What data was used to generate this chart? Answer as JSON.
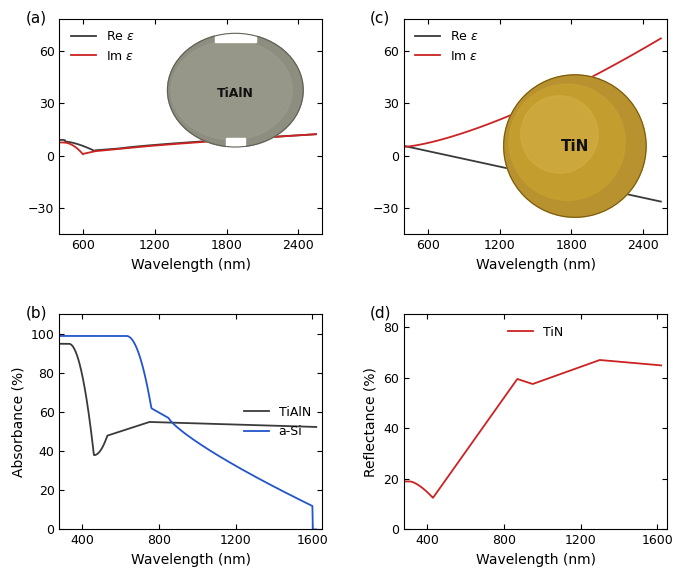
{
  "fig_width": 6.85,
  "fig_height": 5.78,
  "panel_labels": [
    "(a)",
    "(b)",
    "(c)",
    "(d)"
  ],
  "panel_label_fontsize": 11,
  "ax_a": {
    "xlabel": "Wavelength (nm)",
    "ylabel": "",
    "xlim": [
      400,
      2600
    ],
    "ylim": [
      -45,
      78
    ],
    "yticks": [
      -30,
      0,
      30,
      60
    ],
    "xticks": [
      600,
      1200,
      1800,
      2400
    ],
    "legend_colors": [
      "#3a3a3a",
      "#cc2222"
    ]
  },
  "ax_b": {
    "xlabel": "Wavelength (nm)",
    "ylabel": "Absorbance (%)",
    "xlim": [
      280,
      1650
    ],
    "ylim": [
      0,
      110
    ],
    "yticks": [
      0,
      20,
      40,
      60,
      80,
      100
    ],
    "xticks": [
      400,
      800,
      1200,
      1600
    ],
    "legend_colors": [
      "#3a3a3a",
      "#2255cc"
    ]
  },
  "ax_c": {
    "xlabel": "Wavelength (nm)",
    "ylabel": "",
    "xlim": [
      400,
      2600
    ],
    "ylim": [
      -45,
      78
    ],
    "yticks": [
      -30,
      0,
      30,
      60
    ],
    "xticks": [
      600,
      1200,
      1800,
      2400
    ],
    "legend_colors": [
      "#3a3a3a",
      "#cc2222"
    ]
  },
  "ax_d": {
    "xlabel": "Wavelength (nm)",
    "ylabel": "Reflectance (%)",
    "xlim": [
      280,
      1650
    ],
    "ylim": [
      0,
      85
    ],
    "yticks": [
      0,
      20,
      40,
      60,
      80
    ],
    "xticks": [
      400,
      800,
      1200,
      1600
    ],
    "legend_colors": [
      "#cc2222"
    ]
  },
  "line_color_dark": "#3a3a3a",
  "line_color_red": "#cc2222",
  "line_color_blue": "#2255cc",
  "line_width": 1.3,
  "axis_linewidth": 0.8,
  "tick_fontsize": 9,
  "label_fontsize": 10
}
